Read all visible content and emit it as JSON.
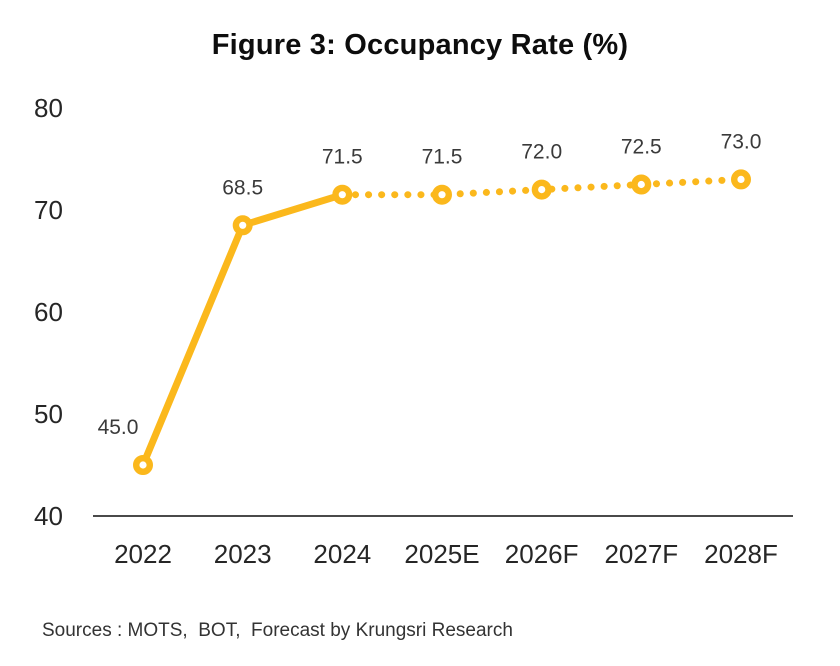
{
  "title": "Figure 3: Occupancy Rate (%)",
  "source_note": "Sources : MOTS,  BOT,  Forecast by Krungsri Research",
  "colors": {
    "line": "#FBB81C",
    "axis": "#4a4a4a",
    "tick_text": "#262626",
    "label_text": "#3a3a3a",
    "marker_fill": "#ffffff"
  },
  "chart_data": {
    "type": "line",
    "title": "Figure 3: Occupancy Rate (%)",
    "categories": [
      "2022",
      "2023",
      "2024",
      "2025E",
      "2026F",
      "2027F",
      "2028F"
    ],
    "series": [
      {
        "name": "Occupancy Rate (%)",
        "values": [
          45.0,
          68.5,
          71.5,
          71.5,
          72.0,
          72.5,
          73.0
        ]
      }
    ],
    "data_labels": [
      "45.0",
      "68.5",
      "71.5",
      "71.5",
      "72.0",
      "72.5",
      "73.0"
    ],
    "solid_through_index": 2,
    "line_style_note": "solid through 2024, dotted for estimates/forecasts",
    "ylim": [
      40,
      80
    ],
    "yticks": [
      40,
      50,
      60,
      70,
      80
    ],
    "xlabel": "",
    "ylabel": "",
    "grid": false,
    "legend": false
  }
}
